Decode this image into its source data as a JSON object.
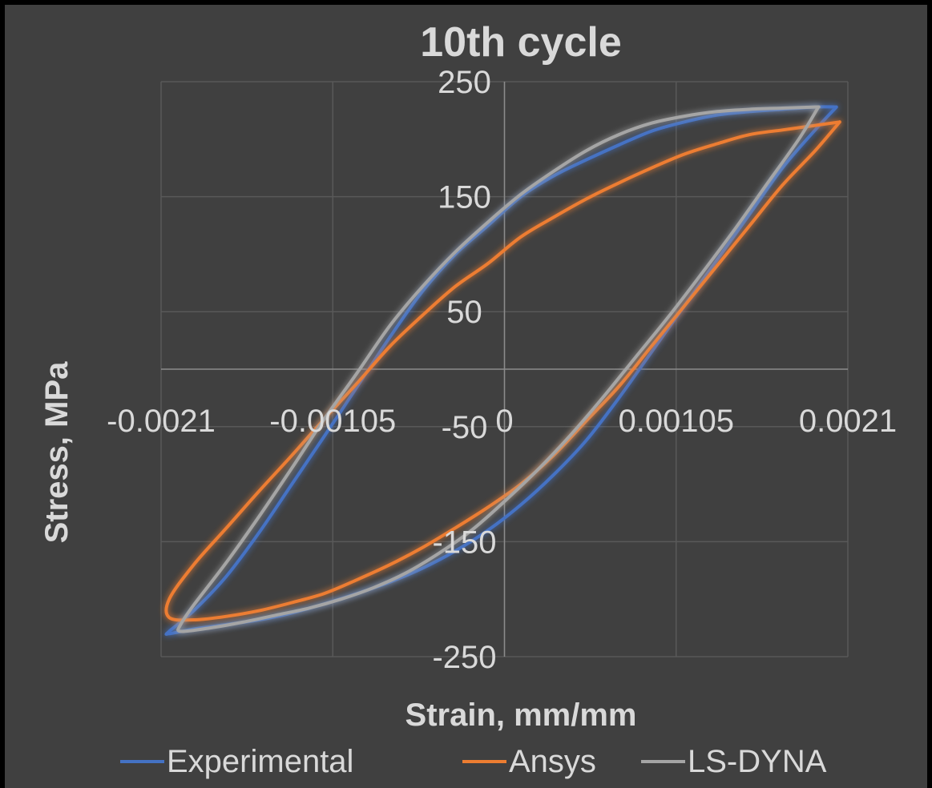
{
  "chart_data": {
    "type": "line",
    "title": "10th cycle",
    "xlabel": "Strain, mm/mm",
    "ylabel": "Stress, MPa",
    "xlim": [
      -0.0021,
      0.0021
    ],
    "ylim": [
      -250,
      250
    ],
    "xticks": [
      "-0.0021",
      "-0.00105",
      "0",
      "0.00105",
      "0.0021"
    ],
    "yticks": [
      "250",
      "150",
      "50",
      "-50",
      "-150",
      "-250"
    ],
    "grid": true,
    "legend_position": "bottom",
    "background_color": "#404040",
    "frame_color": "#000000",
    "series": [
      {
        "name": "Experimental",
        "color": "#4472c4",
        "x": [
          0.00203,
          0.0019,
          0.0017,
          0.0015,
          0.0013,
          0.0011,
          0.0009,
          0.0007,
          0.0005,
          0.0003,
          0.0001,
          -0.0001,
          -0.0003,
          -0.0005,
          -0.0007,
          -0.0009,
          -0.0011,
          -0.0013,
          -0.0015,
          -0.0017,
          -0.0019,
          -0.00205,
          -0.00205,
          -0.0019,
          -0.0017,
          -0.0015,
          -0.0013,
          -0.0011,
          -0.0009,
          -0.0007,
          -0.0005,
          -0.0003,
          -0.0001,
          0.0001,
          0.0003,
          0.0005,
          0.0007,
          0.0009,
          0.0011,
          0.0013,
          0.0015,
          0.0017,
          0.0019,
          0.00203
        ],
        "y": [
          228,
          208,
          175,
          135,
          95,
          55,
          15,
          -25,
          -62,
          -92,
          -118,
          -140,
          -158,
          -173,
          -185,
          -195,
          -204,
          -212,
          -218,
          -222,
          -226,
          -230,
          -228,
          -210,
          -180,
          -142,
          -100,
          -58,
          -15,
          28,
          68,
          100,
          125,
          150,
          168,
          182,
          195,
          207,
          215,
          221,
          224,
          226,
          228,
          228
        ]
      },
      {
        "name": "Ansys",
        "color": "#ed7d31",
        "x": [
          0.00205,
          0.0019,
          0.0017,
          0.0015,
          0.0013,
          0.0011,
          0.0009,
          0.0007,
          0.0005,
          0.0003,
          0.0001,
          -0.0001,
          -0.0003,
          -0.0005,
          -0.0007,
          -0.0009,
          -0.0011,
          -0.0013,
          -0.0015,
          -0.0017,
          -0.0019,
          -0.00205,
          -0.00205,
          -0.0019,
          -0.0017,
          -0.0015,
          -0.0013,
          -0.0011,
          -0.0009,
          -0.0007,
          -0.0005,
          -0.0003,
          -0.0001,
          0.0001,
          0.0003,
          0.0005,
          0.0007,
          0.0009,
          0.0011,
          0.0013,
          0.0015,
          0.0017,
          0.0019,
          0.00205
        ],
        "y": [
          215,
          190,
          160,
          125,
          90,
          55,
          20,
          -15,
          -45,
          -75,
          -100,
          -120,
          -138,
          -155,
          -170,
          -183,
          -195,
          -203,
          -210,
          -215,
          -218,
          -216,
          -200,
          -170,
          -138,
          -106,
          -75,
          -43,
          -12,
          20,
          47,
          72,
          92,
          115,
          132,
          148,
          162,
          175,
          187,
          196,
          204,
          208,
          212,
          215
        ]
      },
      {
        "name": "LS-DYNA",
        "color": "#a5a5a5",
        "x": [
          0.00192,
          0.0018,
          0.0016,
          0.0014,
          0.0012,
          0.001,
          0.0008,
          0.0006,
          0.0004,
          0.0002,
          0.0,
          -0.0002,
          -0.0004,
          -0.0006,
          -0.0008,
          -0.001,
          -0.0012,
          -0.0014,
          -0.0016,
          -0.0018,
          -0.00198,
          -0.00198,
          -0.0019,
          -0.0017,
          -0.0015,
          -0.0013,
          -0.0011,
          -0.0009,
          -0.0007,
          -0.0005,
          -0.0003,
          -0.0001,
          0.0001,
          0.0003,
          0.0005,
          0.0007,
          0.0009,
          0.0011,
          0.0013,
          0.0015,
          0.0017,
          0.0019,
          0.00192
        ],
        "y": [
          228,
          200,
          160,
          120,
          82,
          45,
          10,
          -25,
          -58,
          -88,
          -115,
          -140,
          -160,
          -177,
          -190,
          -200,
          -208,
          -214,
          -220,
          -225,
          -228,
          -222,
          -205,
          -168,
          -128,
          -86,
          -43,
          -3,
          38,
          72,
          102,
          128,
          152,
          172,
          190,
          204,
          214,
          220,
          224,
          226,
          227,
          228,
          228
        ]
      }
    ]
  }
}
